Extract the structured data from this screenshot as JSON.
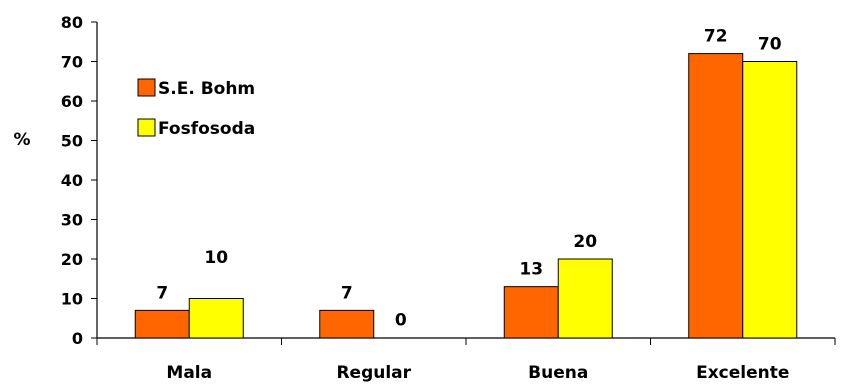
{
  "chart_data": {
    "type": "bar",
    "ylabel": "%",
    "ylim": [
      0,
      80
    ],
    "yticks": [
      "0",
      "10",
      "20",
      "30",
      "40",
      "50",
      "60",
      "70",
      "80"
    ],
    "categories": [
      "Mala",
      "Regular",
      "Buena",
      "Excelente"
    ],
    "series": [
      {
        "name": "S.E. Bohm",
        "color": "#ff6600",
        "values": [
          7,
          7,
          13,
          72
        ],
        "labels": [
          "7",
          "7",
          "13",
          "72"
        ]
      },
      {
        "name": "Fosfosoda",
        "color": "#ffff00",
        "values": [
          10,
          0,
          20,
          70
        ],
        "labels": [
          "10",
          "0",
          "20",
          "70"
        ]
      }
    ],
    "legend_position": "top-left",
    "grid": false
  }
}
